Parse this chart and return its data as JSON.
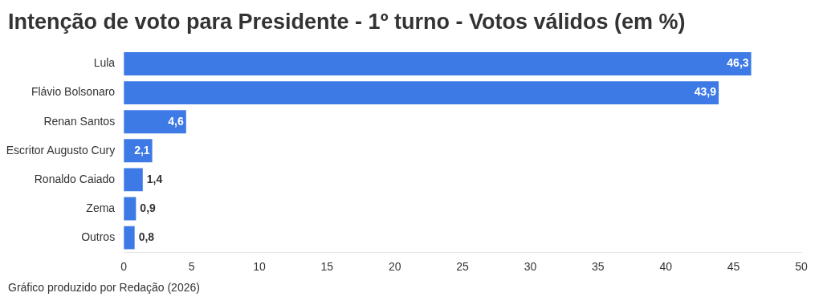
{
  "chart_data": {
    "type": "bar",
    "orientation": "horizontal",
    "title": "Intenção de voto para Presidente - 1º turno - Votos válidos (em %)",
    "categories": [
      "Lula",
      "Flávio Bolsonaro",
      "Renan Santos",
      "Escritor Augusto Cury",
      "Ronaldo Caiado",
      "Zema",
      "Outros"
    ],
    "values": [
      46.3,
      43.9,
      4.6,
      2.1,
      1.4,
      0.9,
      0.8
    ],
    "value_labels": [
      "46,3",
      "43,9",
      "4,6",
      "2,1",
      "1,4",
      "0,9",
      "0,8"
    ],
    "color": "#3d7ae6",
    "xlim": [
      0,
      50
    ],
    "xticks": [
      0,
      5,
      10,
      15,
      20,
      25,
      30,
      35,
      40,
      45,
      50
    ],
    "grid": false,
    "legend": false,
    "annotations": [
      "Gráfico produzido por Redação (2026)"
    ]
  }
}
